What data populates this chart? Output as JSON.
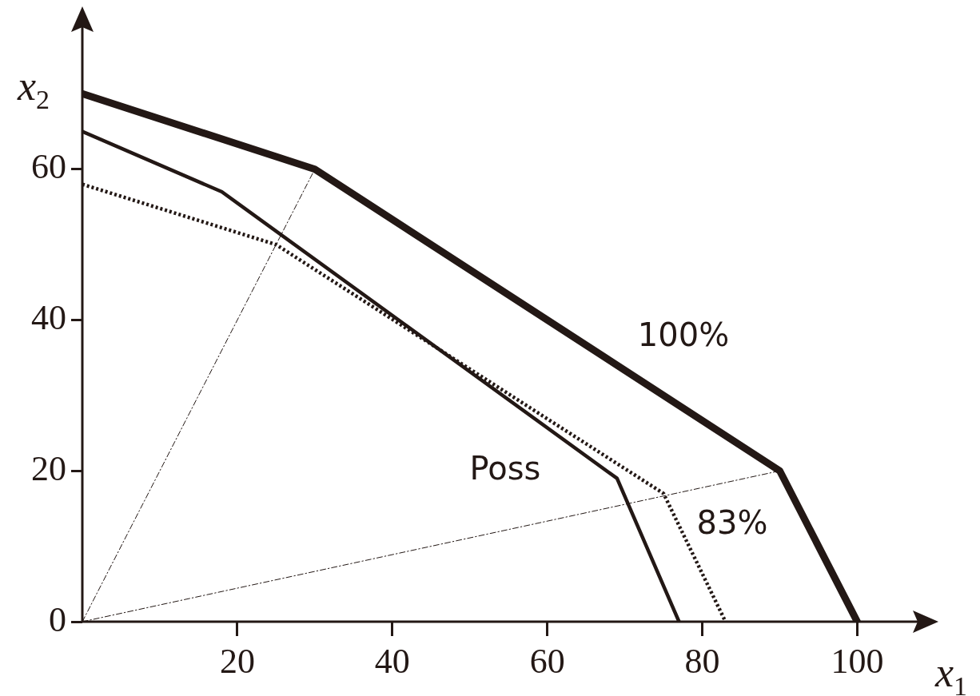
{
  "chart_data": {
    "type": "line",
    "xlabel": "x$_{1}$",
    "ylabel": "x$_{2}$",
    "xlim": [
      0,
      108
    ],
    "ylim": [
      0,
      79
    ],
    "xticks": [
      20,
      40,
      60,
      80,
      100
    ],
    "yticks": [
      0,
      20,
      40,
      60
    ],
    "grid": false,
    "legend": false,
    "marker": "none",
    "series": [
      {
        "color": "#231815",
        "x": [
          0,
          30,
          90,
          100
        ],
        "values": [
          70,
          60,
          20,
          0
        ],
        "line_style": "solid"
      },
      {
        "color": "#231815",
        "x": [
          0,
          18,
          69,
          77
        ],
        "values": [
          65,
          57,
          19,
          0
        ],
        "line_style": "solid"
      },
      {
        "color": "#231815",
        "x": [
          0,
          25,
          75,
          83
        ],
        "values": [
          58,
          50,
          17,
          0
        ],
        "line_style": "dotted"
      },
      {
        "color": "#231815",
        "x": [
          0,
          30
        ],
        "values": [
          0,
          60
        ],
        "line_style": "dashed"
      },
      {
        "color": "#231815",
        "x": [
          0,
          90
        ],
        "values": [
          0,
          20
        ],
        "line_style": "dashed"
      }
    ],
    "annotations": [
      "100%",
      "Poss",
      "83%"
    ]
  }
}
